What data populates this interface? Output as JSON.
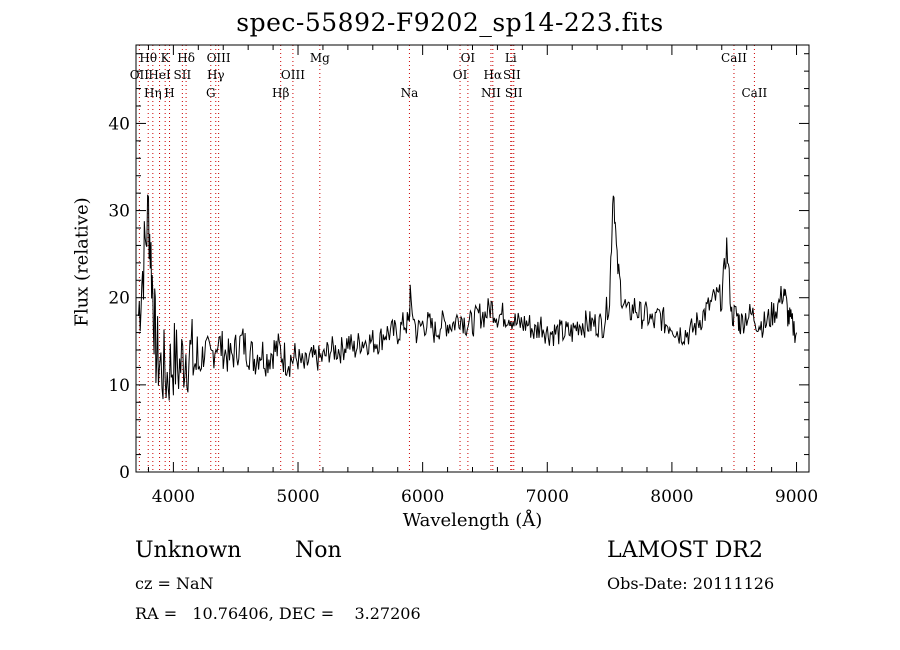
{
  "chart_data": {
    "type": "line",
    "title": "spec-55892-F9202_sp14-223.fits",
    "xlabel": "Wavelength (Å)",
    "ylabel": "Flux (relative)",
    "xlim": [
      3700,
      9100
    ],
    "ylim": [
      0,
      49
    ],
    "x_ticks": [
      4000,
      5000,
      6000,
      7000,
      8000,
      9000
    ],
    "y_ticks": [
      0,
      10,
      20,
      30,
      40
    ],
    "grid": false,
    "line_color": "#000000",
    "marker_color": "#cc0000",
    "spectrum": {
      "x": [
        3720,
        3760,
        3800,
        3830,
        3860,
        3900,
        3950,
        4000,
        4050,
        4100,
        4150,
        4200,
        4250,
        4300,
        4350,
        4400,
        4450,
        4500,
        4550,
        4600,
        4650,
        4700,
        4750,
        4800,
        4850,
        4900,
        4950,
        5000,
        5050,
        5100,
        5150,
        5200,
        5250,
        5300,
        5350,
        5400,
        5450,
        5500,
        5550,
        5600,
        5650,
        5700,
        5750,
        5800,
        5850,
        5890,
        5900,
        5950,
        6000,
        6050,
        6100,
        6150,
        6200,
        6250,
        6300,
        6350,
        6400,
        6450,
        6500,
        6550,
        6600,
        6650,
        6700,
        6750,
        6800,
        6850,
        6900,
        6950,
        7000,
        7050,
        7100,
        7150,
        7200,
        7250,
        7300,
        7350,
        7400,
        7450,
        7500,
        7530,
        7560,
        7600,
        7650,
        7700,
        7750,
        7800,
        7850,
        7900,
        7950,
        8000,
        8050,
        8100,
        8150,
        8200,
        8250,
        8300,
        8350,
        8400,
        8440,
        8480,
        8520,
        8550,
        8600,
        8650,
        8700,
        8750,
        8800,
        8850,
        8900,
        8930,
        8960,
        9000
      ],
      "y": [
        18,
        24,
        30,
        22,
        14,
        12,
        11,
        13,
        12,
        14,
        13,
        12,
        14,
        13,
        15,
        14,
        13,
        14,
        15,
        14,
        13,
        14,
        13,
        14,
        14,
        13,
        13,
        13,
        12,
        13,
        13,
        13,
        14,
        14,
        14,
        15,
        14,
        15,
        15,
        15,
        15,
        16,
        16,
        16,
        17,
        17,
        20,
        16,
        17,
        17,
        16,
        17,
        17,
        17,
        18,
        17,
        17,
        18,
        18,
        19,
        18,
        18,
        18,
        17,
        17,
        17,
        16,
        17,
        16,
        16,
        16,
        16,
        16,
        17,
        17,
        17,
        17,
        17,
        20,
        33,
        24,
        20,
        18,
        19,
        18,
        18,
        17,
        18,
        17,
        17,
        16,
        16,
        16,
        17,
        18,
        19,
        20,
        20,
        26,
        18,
        18,
        17,
        18,
        18,
        17,
        17,
        18,
        19,
        21,
        18,
        17,
        16
      ]
    },
    "line_markers": [
      {
        "label": "OII",
        "x": 3727,
        "row": 1
      },
      {
        "label": "Hθ",
        "x": 3798,
        "row": 0
      },
      {
        "label": "Hη",
        "x": 3835,
        "row": 2
      },
      {
        "label": "HeI",
        "x": 3889,
        "row": 1
      },
      {
        "label": "K",
        "x": 3934,
        "row": 0
      },
      {
        "label": "H",
        "x": 3969,
        "row": 2
      },
      {
        "label": "SII",
        "x": 4072,
        "row": 1
      },
      {
        "label": "Hδ",
        "x": 4102,
        "row": 0
      },
      {
        "label": "G",
        "x": 4300,
        "row": 2
      },
      {
        "label": "Hγ",
        "x": 4340,
        "row": 1
      },
      {
        "label": "OIII",
        "x": 4363,
        "row": 0
      },
      {
        "label": "Hβ",
        "x": 4861,
        "row": 2
      },
      {
        "label": "OIII",
        "x": 4959,
        "row": 1
      },
      {
        "label": "Mg",
        "x": 5175,
        "row": 0
      },
      {
        "label": "Na",
        "x": 5894,
        "row": 2
      },
      {
        "label": "OI",
        "x": 6300,
        "row": 1
      },
      {
        "label": "OI",
        "x": 6363,
        "row": 0
      },
      {
        "label": "NII",
        "x": 6548,
        "row": 2
      },
      {
        "label": "Hα",
        "x": 6563,
        "row": 1
      },
      {
        "label": "Li",
        "x": 6707,
        "row": 0
      },
      {
        "label": "SII",
        "x": 6716,
        "row": 1
      },
      {
        "label": "SII",
        "x": 6731,
        "row": 2
      },
      {
        "label": "CaII",
        "x": 8498,
        "row": 0
      },
      {
        "label": "CaII",
        "x": 8662,
        "row": 2
      }
    ]
  },
  "info": {
    "class_left": "Unknown",
    "class_right": "Non",
    "release": "LAMOST DR2",
    "cz": "cz = NaN",
    "obs_date": "Obs-Date: 20111126",
    "radec": "RA =   10.76406, DEC =    3.27206"
  }
}
